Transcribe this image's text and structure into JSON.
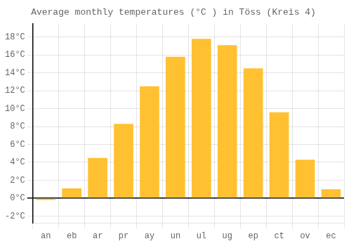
{
  "chart_data": {
    "type": "bar",
    "title": "Average monthly temperatures (°C ) in Töss (Kreis 4)",
    "categories": [
      "an",
      "eb",
      "ar",
      "pr",
      "ay",
      "un",
      "ul",
      "ug",
      "ep",
      "ct",
      "ov",
      "ec"
    ],
    "values": [
      -0.2,
      1.1,
      4.5,
      8.3,
      12.5,
      15.8,
      17.8,
      17.1,
      14.5,
      9.6,
      4.3,
      1.0
    ],
    "color": "#FFC132",
    "ylim": [
      -2.8,
      19.5
    ],
    "yticks": [
      {
        "value": -2,
        "label": "-2°C"
      },
      {
        "value": 0,
        "label": "0°C"
      },
      {
        "value": 2,
        "label": "2°C"
      },
      {
        "value": 4,
        "label": "4°C"
      },
      {
        "value": 6,
        "label": "6°C"
      },
      {
        "value": 8,
        "label": "8°C"
      },
      {
        "value": 10,
        "label": "10°C"
      },
      {
        "value": 12,
        "label": "12°C"
      },
      {
        "value": 14,
        "label": "14°C"
      },
      {
        "value": 16,
        "label": "16°C"
      },
      {
        "value": 18,
        "label": "18°C"
      }
    ],
    "grid": true
  }
}
